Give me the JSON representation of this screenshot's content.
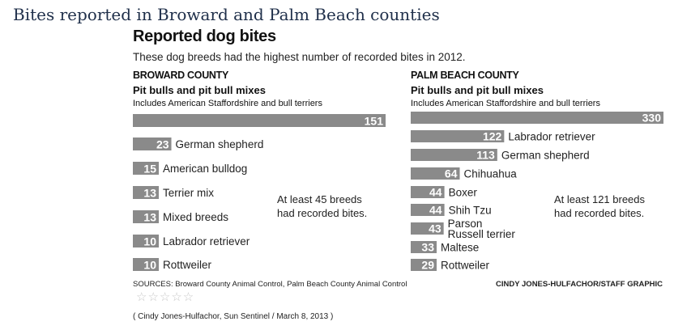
{
  "page": {
    "title": "Bites reported in Broward and Palm Beach counties",
    "citation": "( Cindy Jones-Hulfachor, Sun Sentinel / March 8, 2013 )"
  },
  "figure": {
    "title": "Reported dog bites",
    "subtitle": "These dog breeds had the highest number of recorded bites in 2012.",
    "sources": "SOURCES: Broward County Animal Control, Palm Beach County Animal Control",
    "credit": "CINDY JONES-HULFACHOR/STAFF GRAPHIC",
    "rating_stars": "☆☆☆☆☆",
    "bar_color": "#8a8a8a"
  },
  "chart_data": [
    {
      "type": "bar",
      "orientation": "horizontal",
      "title": "BROWARD COUNTY",
      "subtitle": "Pit bulls and pit bull mixes",
      "top_note": "Includes American Staffordshire and bull terriers",
      "categories": [
        "Pit bulls and pit bull mixes",
        "German shepherd",
        "American bulldog",
        "Terrier mix",
        "Mixed breeds",
        "Labrador retriever",
        "Rottweiler"
      ],
      "values": [
        151,
        23,
        15,
        13,
        13,
        10,
        10
      ],
      "annotation": "At least 45 breeds had recorded bites.",
      "annotation_lines": [
        "At least 45 breeds",
        "had recorded bites."
      ]
    },
    {
      "type": "bar",
      "orientation": "horizontal",
      "title": "PALM BEACH COUNTY",
      "subtitle": "Pit bulls and pit bull mixes",
      "top_note": "Includes American Staffordshire and bull terriers",
      "categories": [
        "Pit bulls and pit bull mixes",
        "Labrador retriever",
        "German shepherd",
        "Chihuahua",
        "Boxer",
        "Shih Tzu",
        "Parson Russell terrier",
        "Maltese",
        "Rottweiler"
      ],
      "label_lines": [
        [
          ""
        ],
        [
          "Labrador retriever"
        ],
        [
          "German shepherd"
        ],
        [
          "Chihuahua"
        ],
        [
          "Boxer"
        ],
        [
          "Shih Tzu"
        ],
        [
          "Parson",
          "Russell terrier"
        ],
        [
          "Maltese"
        ],
        [
          "Rottweiler"
        ]
      ],
      "values": [
        330,
        122,
        113,
        64,
        44,
        44,
        43,
        33,
        29
      ],
      "annotation": "At least 121 breeds had recorded bites.",
      "annotation_lines": [
        "At least 121 breeds",
        "had recorded bites."
      ]
    }
  ]
}
